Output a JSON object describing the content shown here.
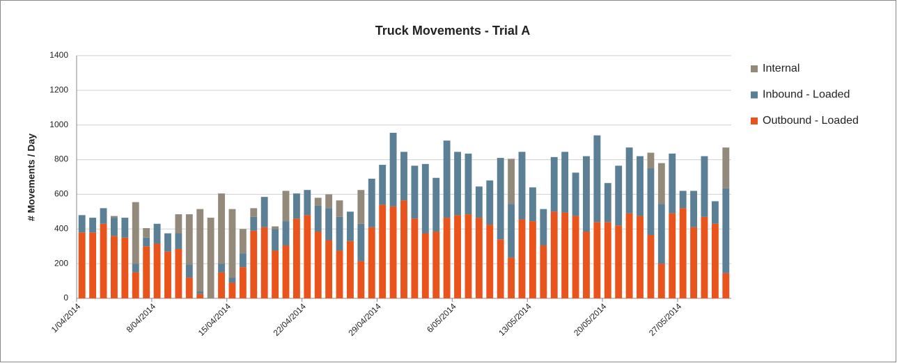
{
  "chart_data": {
    "type": "stacked-bar",
    "title": "Truck Movements - Trial A",
    "y_label": "# Movements / Day",
    "categories": [
      "1/04/2014",
      null,
      null,
      null,
      null,
      null,
      null,
      "8/04/2014",
      null,
      null,
      null,
      null,
      null,
      null,
      "15/04/2014",
      null,
      null,
      null,
      null,
      null,
      null,
      "22/04/2014",
      null,
      null,
      null,
      null,
      null,
      null,
      "29/04/2014",
      null,
      null,
      null,
      null,
      null,
      null,
      "6/05/2014",
      null,
      null,
      null,
      null,
      null,
      null,
      "13/05/2014",
      null,
      null,
      null,
      null,
      null,
      null,
      "20/05/2014",
      null,
      null,
      null,
      null,
      null,
      null,
      "27/05/2014",
      null,
      null,
      null,
      null
    ],
    "series": [
      {
        "name": "Outbound - Loaded",
        "color": "#e8541c",
        "values": [
          380,
          380,
          430,
          360,
          350,
          150,
          300,
          315,
          270,
          285,
          120,
          25,
          0,
          150,
          90,
          180,
          390,
          410,
          275,
          305,
          460,
          480,
          385,
          335,
          275,
          330,
          215,
          410,
          540,
          530,
          565,
          460,
          375,
          385,
          465,
          480,
          485,
          465,
          425,
          340,
          235,
          455,
          445,
          305,
          500,
          495,
          475,
          385,
          440,
          440,
          420,
          490,
          475,
          365,
          200,
          490,
          520,
          410,
          470,
          430,
          145
        ]
      },
      {
        "name": "Inbound - Loaded",
        "color": "#5b7f95",
        "values": [
          100,
          85,
          90,
          105,
          115,
          50,
          50,
          115,
          105,
          90,
          75,
          15,
          0,
          50,
          30,
          80,
          80,
          175,
          125,
          140,
          145,
          145,
          150,
          185,
          195,
          170,
          215,
          280,
          230,
          425,
          280,
          305,
          400,
          310,
          445,
          365,
          350,
          180,
          255,
          470,
          310,
          390,
          195,
          210,
          315,
          350,
          250,
          435,
          500,
          225,
          345,
          380,
          345,
          385,
          345,
          345,
          100,
          210,
          350,
          130,
          490
        ]
      },
      {
        "name": "Internal",
        "color": "#948a7c",
        "values": [
          0,
          0,
          0,
          10,
          0,
          355,
          55,
          0,
          0,
          110,
          290,
          475,
          465,
          405,
          395,
          140,
          50,
          0,
          15,
          175,
          0,
          0,
          45,
          80,
          95,
          0,
          195,
          0,
          0,
          0,
          0,
          0,
          0,
          0,
          0,
          0,
          0,
          0,
          0,
          0,
          260,
          0,
          0,
          0,
          0,
          0,
          0,
          0,
          0,
          0,
          0,
          0,
          0,
          90,
          235,
          0,
          0,
          0,
          0,
          0,
          235
        ]
      }
    ],
    "ylim": [
      0,
      1400
    ],
    "yticks": [
      0,
      200,
      400,
      600,
      800,
      1000,
      1200,
      1400
    ],
    "grid": true,
    "legend": "right"
  }
}
